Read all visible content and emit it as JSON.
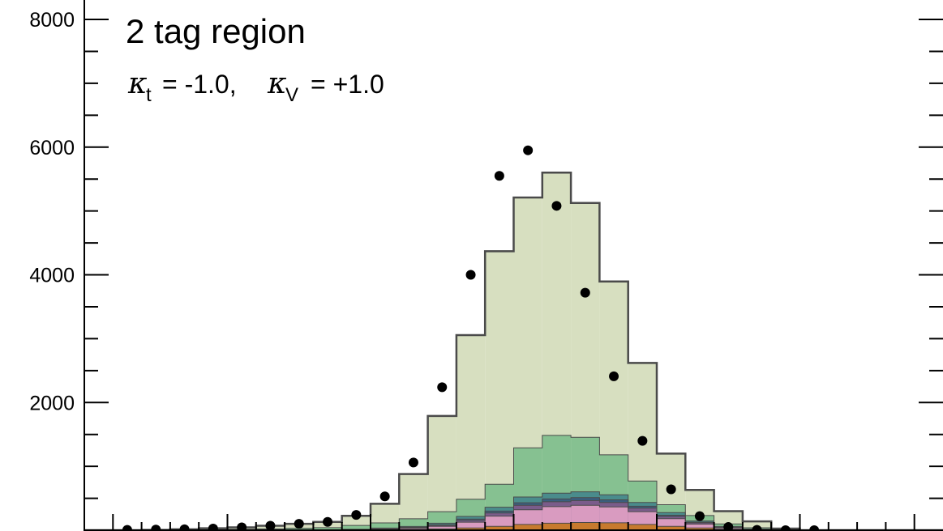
{
  "chart_data": {
    "type": "bar",
    "title": "2 tag region",
    "annotation": {
      "kappa_t_symbol": "κ",
      "kappa_t_sub": "t",
      "kappa_t_value": "= -1.0,",
      "kappa_v_symbol": "κ",
      "kappa_v_sub": "V",
      "kappa_v_value": "= +1.0"
    },
    "xlim": [
      0,
      30
    ],
    "ylim": [
      0,
      8000
    ],
    "yticks": [
      0,
      2000,
      4000,
      6000,
      8000
    ],
    "ytick_labels": [
      "",
      "2000",
      "4000",
      "6000",
      "8000"
    ],
    "y_minor_step": 500,
    "x_major_ticks": [
      1,
      5,
      10,
      15,
      20,
      25,
      29
    ],
    "x_minor_step": 1,
    "grid": false,
    "colors": {
      "frame": "#000000",
      "step_line": "#4a4a4a",
      "data_points": "#000000"
    },
    "stack": [
      {
        "color": "#c77a2e",
        "values": [
          0,
          0,
          0,
          0,
          0,
          0,
          0,
          0,
          0,
          0,
          5,
          10,
          20,
          35,
          60,
          90,
          110,
          120,
          115,
          90,
          60,
          35,
          15,
          5,
          0,
          0,
          0,
          0,
          0,
          0
        ]
      },
      {
        "color": "#d99bc0",
        "values": [
          0,
          0,
          0,
          0,
          0,
          0,
          0,
          0,
          0,
          5,
          10,
          20,
          40,
          90,
          160,
          230,
          260,
          270,
          250,
          200,
          120,
          60,
          20,
          5,
          0,
          0,
          0,
          0,
          0,
          0
        ]
      },
      {
        "color": "#7a5c8a",
        "values": [
          0,
          0,
          0,
          0,
          0,
          0,
          0,
          0,
          0,
          3,
          5,
          8,
          15,
          30,
          50,
          70,
          75,
          75,
          70,
          55,
          35,
          20,
          8,
          3,
          0,
          0,
          0,
          0,
          0,
          0
        ]
      },
      {
        "color": "#3a5f7f",
        "values": [
          0,
          0,
          0,
          0,
          0,
          0,
          0,
          0,
          0,
          2,
          4,
          6,
          10,
          20,
          30,
          40,
          45,
          45,
          40,
          30,
          20,
          10,
          5,
          2,
          0,
          0,
          0,
          0,
          0,
          0
        ]
      },
      {
        "color": "#4a8c8c",
        "values": [
          0,
          0,
          0,
          0,
          0,
          0,
          0,
          0,
          0,
          5,
          10,
          15,
          25,
          40,
          60,
          90,
          90,
          90,
          80,
          60,
          40,
          20,
          10,
          3,
          0,
          0,
          0,
          0,
          0,
          0
        ]
      },
      {
        "color": "#86c191",
        "values": [
          0,
          0,
          0,
          5,
          10,
          15,
          20,
          30,
          40,
          60,
          80,
          120,
          180,
          270,
          360,
          770,
          905,
          855,
          625,
          335,
          125,
          85,
          40,
          20,
          5,
          0,
          0,
          0,
          0,
          0
        ]
      },
      {
        "color": "#d7dfc0",
        "values": [
          0,
          0,
          5,
          10,
          20,
          30,
          50,
          70,
          90,
          150,
          300,
          700,
          1500,
          2570,
          3650,
          3920,
          4115,
          3670,
          2715,
          1850,
          800,
          400,
          200,
          100,
          20,
          0,
          0,
          0,
          0,
          0
        ]
      }
    ],
    "data_points": {
      "x": [
        1.5,
        2.5,
        3.5,
        4.5,
        5.5,
        6.5,
        7.5,
        8.5,
        9.5,
        10.5,
        11.5,
        12.5,
        13.5,
        14.5,
        15.5,
        16.5,
        17.5,
        18.5,
        19.5,
        20.5,
        21.5,
        22.5,
        23.5,
        24.5,
        25.5
      ],
      "y": [
        5,
        10,
        15,
        25,
        45,
        70,
        100,
        130,
        240,
        530,
        1060,
        2240,
        4000,
        5550,
        5950,
        5080,
        3720,
        2410,
        1400,
        640,
        220,
        50,
        5,
        0,
        0
      ]
    }
  }
}
